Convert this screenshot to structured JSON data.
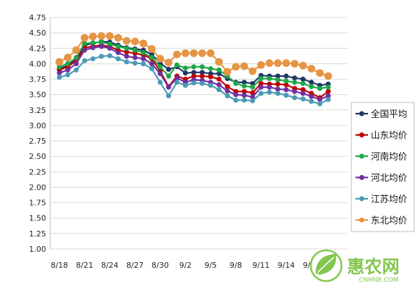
{
  "chart_data": {
    "type": "line",
    "x": [
      "8/18",
      "8/19",
      "8/20",
      "8/21",
      "8/22",
      "8/23",
      "8/24",
      "8/25",
      "8/26",
      "8/27",
      "8/28",
      "8/29",
      "8/30",
      "8/31",
      "9/1",
      "9/2",
      "9/3",
      "9/4",
      "9/5",
      "9/6",
      "9/7",
      "9/8",
      "9/9",
      "9/10",
      "9/11",
      "9/12",
      "9/13",
      "9/14",
      "9/15",
      "9/16",
      "9/17",
      "9/18",
      "9/19"
    ],
    "xtick_labels": [
      "8/18",
      "8/21",
      "8/24",
      "8/27",
      "8/30",
      "9/2",
      "9/5",
      "9/8",
      "9/11",
      "9/14",
      "9/17"
    ],
    "ylim": [
      1.0,
      4.75
    ],
    "yticks": [
      "1.00",
      "1.25",
      "1.50",
      "1.75",
      "2.00",
      "2.25",
      "2.50",
      "2.75",
      "3.00",
      "3.25",
      "3.50",
      "3.75",
      "4.00",
      "4.25",
      "4.50",
      "4.75"
    ],
    "grid": "horizontal",
    "legend_position": "right",
    "series": [
      {
        "name": "全国平均",
        "color": "#1f3864",
        "values": [
          3.92,
          3.97,
          4.07,
          4.3,
          4.33,
          4.36,
          4.35,
          4.3,
          4.26,
          4.24,
          4.22,
          4.15,
          4.01,
          3.91,
          3.95,
          3.85,
          3.86,
          3.86,
          3.84,
          3.84,
          3.76,
          3.7,
          3.7,
          3.68,
          3.81,
          3.8,
          3.8,
          3.8,
          3.77,
          3.75,
          3.7,
          3.65,
          3.67
        ]
      },
      {
        "name": "山东均价",
        "color": "#c00000",
        "values": [
          3.9,
          3.95,
          4.05,
          4.26,
          4.28,
          4.3,
          4.28,
          4.22,
          4.19,
          4.17,
          4.14,
          4.08,
          3.88,
          3.63,
          3.8,
          3.75,
          3.8,
          3.8,
          3.79,
          3.75,
          3.63,
          3.55,
          3.55,
          3.53,
          3.68,
          3.67,
          3.67,
          3.66,
          3.6,
          3.58,
          3.52,
          3.45,
          3.55
        ]
      },
      {
        "name": "河南均价",
        "color": "#1fa648",
        "values": [
          3.95,
          4.0,
          4.1,
          4.33,
          4.34,
          4.35,
          4.32,
          4.28,
          4.25,
          4.22,
          4.18,
          4.1,
          3.95,
          3.8,
          3.98,
          3.93,
          3.95,
          3.95,
          3.92,
          3.9,
          3.8,
          3.68,
          3.64,
          3.62,
          3.76,
          3.76,
          3.74,
          3.72,
          3.7,
          3.68,
          3.63,
          3.6,
          3.62
        ]
      },
      {
        "name": "河北均价",
        "color": "#7030a0",
        "values": [
          3.85,
          3.9,
          4.0,
          4.22,
          4.26,
          4.28,
          4.25,
          4.18,
          4.12,
          4.1,
          4.08,
          4.0,
          3.84,
          3.62,
          3.77,
          3.7,
          3.74,
          3.73,
          3.7,
          3.66,
          3.56,
          3.5,
          3.49,
          3.46,
          3.62,
          3.62,
          3.59,
          3.58,
          3.55,
          3.52,
          3.47,
          3.42,
          3.48
        ]
      },
      {
        "name": "江苏均价",
        "color": "#4b9ab5",
        "values": [
          3.78,
          3.82,
          3.9,
          4.05,
          4.08,
          4.12,
          4.13,
          4.08,
          4.03,
          4.01,
          4.0,
          3.92,
          3.7,
          3.48,
          3.7,
          3.65,
          3.69,
          3.68,
          3.65,
          3.58,
          3.48,
          3.41,
          3.41,
          3.4,
          3.52,
          3.54,
          3.52,
          3.49,
          3.45,
          3.43,
          3.39,
          3.35,
          3.42
        ]
      },
      {
        "name": "东北均价",
        "color": "#e69545",
        "values": [
          4.03,
          4.1,
          4.22,
          4.42,
          4.44,
          4.45,
          4.45,
          4.42,
          4.37,
          4.36,
          4.33,
          4.24,
          4.08,
          4.02,
          4.15,
          4.17,
          4.17,
          4.17,
          4.17,
          4.03,
          3.87,
          3.95,
          3.96,
          3.88,
          3.98,
          4.01,
          4.01,
          4.01,
          4.0,
          3.97,
          3.92,
          3.85,
          3.8
        ]
      }
    ]
  },
  "watermark": {
    "logo_text": "惠农网",
    "logo_sub": "CNHNB.COM"
  }
}
